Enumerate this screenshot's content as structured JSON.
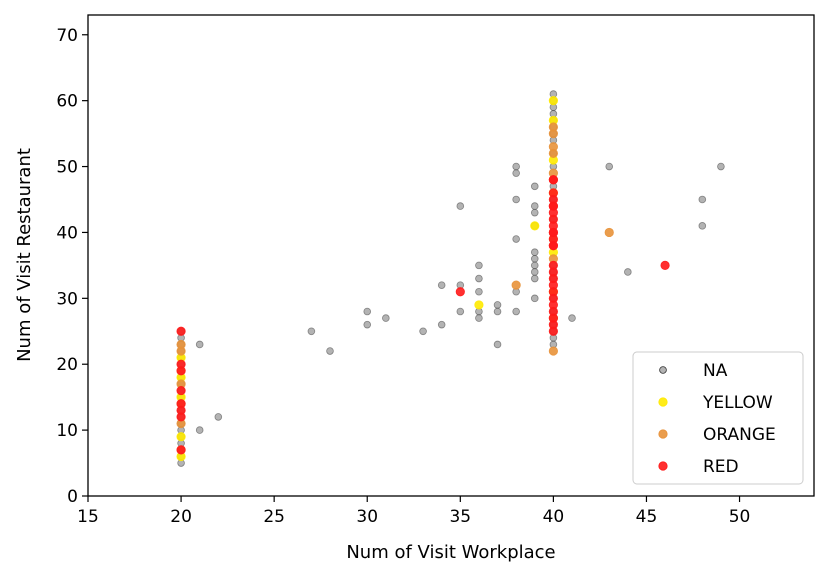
{
  "chart_data": {
    "type": "scatter",
    "title": "",
    "xlabel": "Num of Visit Workplace",
    "ylabel": "Num of Visit Restaurant",
    "xlim": [
      15,
      54
    ],
    "ylim": [
      0,
      73
    ],
    "xticks": [
      15,
      20,
      25,
      30,
      35,
      40,
      45,
      50
    ],
    "yticks": [
      0,
      10,
      20,
      30,
      40,
      50,
      60,
      70
    ],
    "grid": false,
    "legend_position": "bottom-right",
    "series": [
      {
        "name": "NA",
        "color": "#808080",
        "x": [
          20,
          20,
          20,
          20,
          20,
          20,
          20,
          20,
          20,
          20,
          20,
          20,
          20,
          20,
          20,
          20,
          20,
          20,
          20,
          20,
          20,
          21,
          21,
          22,
          27,
          28,
          30,
          30,
          31,
          33,
          34,
          34,
          35,
          35,
          35,
          36,
          36,
          36,
          36,
          36,
          37,
          37,
          37,
          38,
          38,
          38,
          38,
          38,
          38,
          39,
          39,
          39,
          39,
          39,
          39,
          39,
          39,
          39,
          39,
          40,
          40,
          40,
          40,
          40,
          40,
          40,
          40,
          40,
          40,
          40,
          40,
          40,
          40,
          40,
          40,
          40,
          40,
          40,
          40,
          40,
          40,
          41,
          43,
          44,
          48,
          48,
          49
        ],
        "y": [
          5,
          6,
          7,
          8,
          9,
          10,
          11,
          12,
          13,
          14,
          15,
          16,
          17,
          18,
          19,
          20,
          21,
          22,
          23,
          24,
          25,
          10,
          23,
          12,
          25,
          22,
          28,
          26,
          27,
          25,
          32,
          26,
          44,
          32,
          28,
          35,
          33,
          31,
          28,
          27,
          29,
          28,
          23,
          50,
          49,
          45,
          39,
          31,
          28,
          47,
          44,
          43,
          37,
          36,
          35,
          34,
          33,
          30,
          41,
          61,
          60,
          59,
          58,
          57,
          56,
          55,
          54,
          52,
          50,
          47,
          45,
          42,
          35,
          34,
          33,
          30,
          28,
          26,
          25,
          24,
          23,
          27,
          50,
          34,
          45,
          41,
          50
        ]
      },
      {
        "name": "YELLOW",
        "color": "#ffea00",
        "x": [
          20,
          20,
          20,
          20,
          20,
          39,
          36,
          40,
          40,
          40,
          40,
          40,
          40
        ],
        "y": [
          21,
          18,
          15,
          9,
          6,
          41,
          29,
          60,
          57,
          51,
          46,
          37,
          31
        ]
      },
      {
        "name": "ORANGE",
        "color": "#e8923a",
        "x": [
          20,
          20,
          20,
          20,
          20,
          20,
          20,
          38,
          43,
          40,
          40,
          40,
          40,
          40,
          40,
          40,
          40,
          40
        ],
        "y": [
          23,
          22,
          19,
          17,
          14,
          11,
          7,
          32,
          40,
          56,
          55,
          53,
          52,
          49,
          39,
          36,
          22,
          27
        ]
      },
      {
        "name": "RED",
        "color": "#ff1a1a",
        "x": [
          20,
          20,
          20,
          20,
          20,
          20,
          20,
          20,
          35,
          46,
          40,
          40,
          40,
          40,
          40,
          40,
          40,
          40,
          40,
          40,
          40,
          40,
          40,
          40,
          40,
          40,
          40,
          40,
          40,
          40,
          40,
          40,
          40,
          40,
          40
        ],
        "y": [
          25,
          20,
          19,
          16,
          14,
          13,
          12,
          7,
          31,
          35,
          48,
          46,
          45,
          44,
          43,
          42,
          41,
          40,
          39,
          38,
          35,
          34,
          33,
          32,
          31,
          30,
          29,
          28,
          27,
          26,
          25,
          38,
          44,
          48,
          40
        ]
      }
    ]
  }
}
